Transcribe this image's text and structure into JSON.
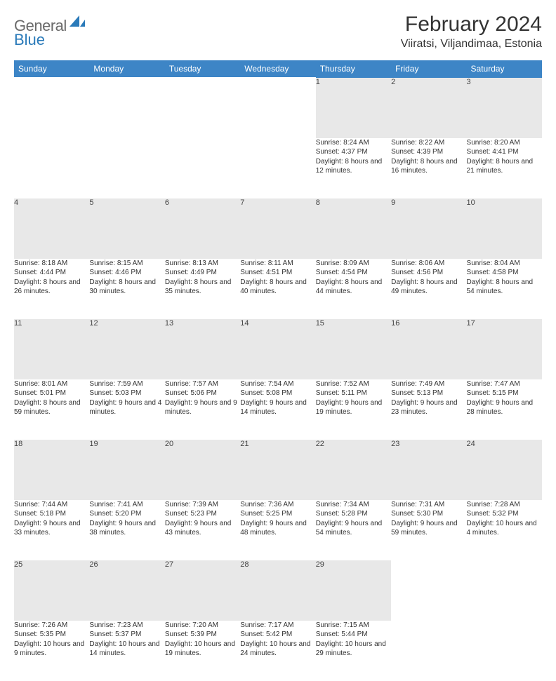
{
  "brand": {
    "part1": "General",
    "part2": "Blue"
  },
  "title": "February 2024",
  "location": "Viiratsi, Viljandimaa, Estonia",
  "colors": {
    "header_bg": "#3d85c6",
    "header_text": "#ffffff",
    "daynum_bg": "#e8e8e8",
    "rule": "#2a6aa0",
    "brand_gray": "#6a6a6a",
    "brand_blue": "#2a7ab9"
  },
  "weekdays": [
    "Sunday",
    "Monday",
    "Tuesday",
    "Wednesday",
    "Thursday",
    "Friday",
    "Saturday"
  ],
  "weeks": [
    [
      null,
      null,
      null,
      null,
      {
        "n": "1",
        "sr": "8:24 AM",
        "ss": "4:37 PM",
        "dl": "8 hours and 12 minutes."
      },
      {
        "n": "2",
        "sr": "8:22 AM",
        "ss": "4:39 PM",
        "dl": "8 hours and 16 minutes."
      },
      {
        "n": "3",
        "sr": "8:20 AM",
        "ss": "4:41 PM",
        "dl": "8 hours and 21 minutes."
      }
    ],
    [
      {
        "n": "4",
        "sr": "8:18 AM",
        "ss": "4:44 PM",
        "dl": "8 hours and 26 minutes."
      },
      {
        "n": "5",
        "sr": "8:15 AM",
        "ss": "4:46 PM",
        "dl": "8 hours and 30 minutes."
      },
      {
        "n": "6",
        "sr": "8:13 AM",
        "ss": "4:49 PM",
        "dl": "8 hours and 35 minutes."
      },
      {
        "n": "7",
        "sr": "8:11 AM",
        "ss": "4:51 PM",
        "dl": "8 hours and 40 minutes."
      },
      {
        "n": "8",
        "sr": "8:09 AM",
        "ss": "4:54 PM",
        "dl": "8 hours and 44 minutes."
      },
      {
        "n": "9",
        "sr": "8:06 AM",
        "ss": "4:56 PM",
        "dl": "8 hours and 49 minutes."
      },
      {
        "n": "10",
        "sr": "8:04 AM",
        "ss": "4:58 PM",
        "dl": "8 hours and 54 minutes."
      }
    ],
    [
      {
        "n": "11",
        "sr": "8:01 AM",
        "ss": "5:01 PM",
        "dl": "8 hours and 59 minutes."
      },
      {
        "n": "12",
        "sr": "7:59 AM",
        "ss": "5:03 PM",
        "dl": "9 hours and 4 minutes."
      },
      {
        "n": "13",
        "sr": "7:57 AM",
        "ss": "5:06 PM",
        "dl": "9 hours and 9 minutes."
      },
      {
        "n": "14",
        "sr": "7:54 AM",
        "ss": "5:08 PM",
        "dl": "9 hours and 14 minutes."
      },
      {
        "n": "15",
        "sr": "7:52 AM",
        "ss": "5:11 PM",
        "dl": "9 hours and 19 minutes."
      },
      {
        "n": "16",
        "sr": "7:49 AM",
        "ss": "5:13 PM",
        "dl": "9 hours and 23 minutes."
      },
      {
        "n": "17",
        "sr": "7:47 AM",
        "ss": "5:15 PM",
        "dl": "9 hours and 28 minutes."
      }
    ],
    [
      {
        "n": "18",
        "sr": "7:44 AM",
        "ss": "5:18 PM",
        "dl": "9 hours and 33 minutes."
      },
      {
        "n": "19",
        "sr": "7:41 AM",
        "ss": "5:20 PM",
        "dl": "9 hours and 38 minutes."
      },
      {
        "n": "20",
        "sr": "7:39 AM",
        "ss": "5:23 PM",
        "dl": "9 hours and 43 minutes."
      },
      {
        "n": "21",
        "sr": "7:36 AM",
        "ss": "5:25 PM",
        "dl": "9 hours and 48 minutes."
      },
      {
        "n": "22",
        "sr": "7:34 AM",
        "ss": "5:28 PM",
        "dl": "9 hours and 54 minutes."
      },
      {
        "n": "23",
        "sr": "7:31 AM",
        "ss": "5:30 PM",
        "dl": "9 hours and 59 minutes."
      },
      {
        "n": "24",
        "sr": "7:28 AM",
        "ss": "5:32 PM",
        "dl": "10 hours and 4 minutes."
      }
    ],
    [
      {
        "n": "25",
        "sr": "7:26 AM",
        "ss": "5:35 PM",
        "dl": "10 hours and 9 minutes."
      },
      {
        "n": "26",
        "sr": "7:23 AM",
        "ss": "5:37 PM",
        "dl": "10 hours and 14 minutes."
      },
      {
        "n": "27",
        "sr": "7:20 AM",
        "ss": "5:39 PM",
        "dl": "10 hours and 19 minutes."
      },
      {
        "n": "28",
        "sr": "7:17 AM",
        "ss": "5:42 PM",
        "dl": "10 hours and 24 minutes."
      },
      {
        "n": "29",
        "sr": "7:15 AM",
        "ss": "5:44 PM",
        "dl": "10 hours and 29 minutes."
      },
      null,
      null
    ]
  ],
  "labels": {
    "sunrise": "Sunrise:",
    "sunset": "Sunset:",
    "daylight": "Daylight:"
  }
}
